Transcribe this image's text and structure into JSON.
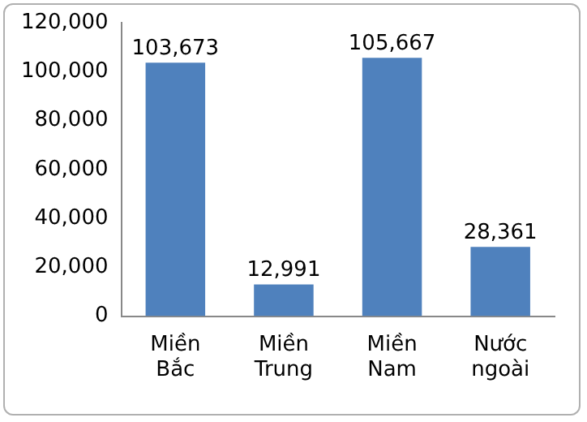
{
  "chart_data": {
    "type": "bar",
    "categories": [
      "Miền Bắc",
      "Miền Trung",
      "Miền Nam",
      "Nước ngoài"
    ],
    "values": [
      103673,
      12991,
      105667,
      28361
    ],
    "value_labels": [
      "103,673",
      "12,991",
      "105,667",
      "28,361"
    ],
    "color": "#4f81bd",
    "ylim": [
      0,
      120000
    ],
    "yticks": [
      0,
      {
        "value": 20000,
        "label": "20,000"
      },
      {
        "value": 40000,
        "label": "40,000"
      },
      {
        "value": 60000,
        "label": "60,000"
      },
      {
        "value": 80000,
        "label": "80,000"
      },
      {
        "value": 100000,
        "label": "100,000"
      },
      {
        "value": 120000,
        "label": "120,000"
      }
    ],
    "grid": false,
    "legend": false
  }
}
